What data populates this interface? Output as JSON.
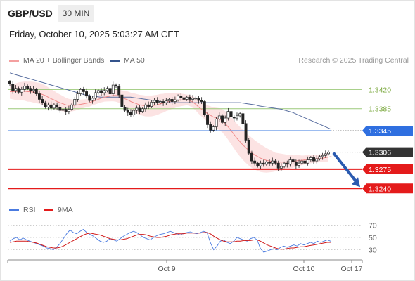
{
  "header": {
    "symbol": "GBP/USD",
    "interval": "30 MIN",
    "datetime": "Friday, October 10, 2025 5:03:27 AM CET"
  },
  "legend": {
    "ma20_label": "MA 20 + Bollinger Bands",
    "ma20_color": "#f4a0a0",
    "ma50_label": "MA 50",
    "ma50_color": "#34538c",
    "research": "Research © 2025 Trading Central"
  },
  "chart_data": {
    "type": "line",
    "price_levels": [
      {
        "value": 1.342,
        "label": "1.3420",
        "kind": "resistance",
        "color": "#9bc97a"
      },
      {
        "value": 1.3385,
        "label": "1.3385",
        "kind": "resistance",
        "color": "#9bc97a"
      },
      {
        "value": 1.3345,
        "label": "1.3345",
        "kind": "pivot",
        "color": "#3a78e0"
      },
      {
        "value": 1.3306,
        "label": "1.3306",
        "kind": "last",
        "color": "#333333"
      },
      {
        "value": 1.3275,
        "label": "1.3275",
        "kind": "support",
        "color": "#e41b1b"
      },
      {
        "value": 1.324,
        "label": "1.3240",
        "kind": "support",
        "color": "#e41b1b"
      }
    ],
    "price_close": [
      1.343,
      1.3418,
      1.3422,
      1.3415,
      1.342,
      1.3426,
      1.3422,
      1.3418,
      1.342,
      1.3412,
      1.3402,
      1.3396,
      1.3388,
      1.3392,
      1.3386,
      1.3392,
      1.3388,
      1.3382,
      1.3384,
      1.338,
      1.3384,
      1.3392,
      1.3402,
      1.3412,
      1.342,
      1.3416,
      1.3408,
      1.34,
      1.3404,
      1.3414,
      1.3418,
      1.3414,
      1.3418,
      1.3422,
      1.3412,
      1.3428,
      1.3426,
      1.341,
      1.3388,
      1.3382,
      1.3378,
      1.3374,
      1.3382,
      1.3386,
      1.338,
      1.3385,
      1.3392,
      1.3389,
      1.3397,
      1.34,
      1.3396,
      1.3398,
      1.3396,
      1.3399,
      1.3402,
      1.3398,
      1.3401,
      1.3408,
      1.3405,
      1.3402,
      1.3406,
      1.3402,
      1.3404,
      1.3404,
      1.34,
      1.3398,
      1.3374,
      1.3356,
      1.3346,
      1.3352,
      1.3366,
      1.3372,
      1.336,
      1.3368,
      1.338,
      1.337,
      1.3368,
      1.3372,
      1.3376,
      1.3358,
      1.3328,
      1.3304,
      1.329,
      1.3286,
      1.3281,
      1.3286,
      1.3284,
      1.3288,
      1.3286,
      1.329,
      1.3286,
      1.3277,
      1.328,
      1.3286,
      1.3284,
      1.3292,
      1.3288,
      1.3282,
      1.3286,
      1.329,
      1.3286,
      1.3292,
      1.3296,
      1.329,
      1.3294,
      1.3298,
      1.33,
      1.3303,
      1.3306
    ],
    "ma20": [
      1.3416,
      1.3416,
      1.3416,
      1.3417,
      1.3417,
      1.3417,
      1.3416,
      1.3416,
      1.3415,
      1.3414,
      1.3413,
      1.3411,
      1.3409,
      1.3406,
      1.3403,
      1.3401,
      1.3398,
      1.3396,
      1.3394,
      1.3392,
      1.3391,
      1.3391,
      1.3391,
      1.3392,
      1.3393,
      1.3394,
      1.3395,
      1.3396,
      1.3398,
      1.34,
      1.3402,
      1.3404,
      1.3406,
      1.3407,
      1.3408,
      1.3409,
      1.3409,
      1.3408,
      1.3405,
      1.3403,
      1.3401,
      1.3398,
      1.3396,
      1.3394,
      1.3392,
      1.3391,
      1.339,
      1.339,
      1.339,
      1.3391,
      1.3392,
      1.3394,
      1.3395,
      1.3397,
      1.3398,
      1.3399,
      1.34,
      1.3401,
      1.3401,
      1.3401,
      1.3401,
      1.34,
      1.3397,
      1.3393,
      1.3388,
      1.3384,
      1.338,
      1.3376,
      1.3373,
      1.337,
      1.3368,
      1.3366,
      1.3363,
      1.3358,
      1.3352,
      1.3345,
      1.3338,
      1.3331,
      1.3325,
      1.3319,
      1.3314,
      1.3309,
      1.3305,
      1.3301,
      1.3298,
      1.3295,
      1.3293,
      1.3291,
      1.329,
      1.3289,
      1.3288,
      1.3288,
      1.3288,
      1.3288,
      1.3288,
      1.3289,
      1.3289,
      1.329,
      1.3291,
      1.3291,
      1.3292,
      1.3293,
      1.3293,
      1.3294,
      1.3294,
      1.3295,
      1.3295,
      1.3296,
      1.3297,
      1.3298
    ],
    "ma50": [
      1.345,
      1.3448,
      1.3446,
      1.3444,
      1.3442,
      1.344,
      1.3438,
      1.3436,
      1.3434,
      1.3432,
      1.343,
      1.3428,
      1.3426,
      1.3424,
      1.3422,
      1.342,
      1.3418,
      1.3416,
      1.3414,
      1.3412,
      1.341,
      1.3409,
      1.3408,
      1.3407,
      1.3406,
      1.3406,
      1.3406,
      1.3406,
      1.3406,
      1.3406,
      1.3406,
      1.3406,
      1.3406,
      1.3405,
      1.3404,
      1.3403,
      1.3402,
      1.3401,
      1.34,
      1.3399,
      1.3398,
      1.3397,
      1.3396,
      1.3396,
      1.3396,
      1.3396,
      1.3396,
      1.3396,
      1.3396,
      1.3396,
      1.3396,
      1.3396,
      1.3396,
      1.3396,
      1.3396,
      1.3396,
      1.3396,
      1.3396,
      1.3396,
      1.3396,
      1.3396,
      1.3396,
      1.3395,
      1.3394,
      1.3393,
      1.3392,
      1.339,
      1.3389,
      1.3388,
      1.3387,
      1.3386,
      1.3385,
      1.3384,
      1.3382,
      1.338,
      1.3378,
      1.3375,
      1.3372,
      1.3369,
      1.3366,
      1.3363,
      1.336,
      1.3357,
      1.3354,
      1.3351,
      1.3348
    ],
    "rsi": [
      44,
      48,
      50,
      46,
      49,
      46,
      44,
      42,
      40,
      38,
      36,
      33,
      32,
      30,
      34,
      40,
      48,
      56,
      62,
      58,
      56,
      60,
      63,
      58,
      55,
      52,
      48,
      44,
      42,
      44,
      48,
      46,
      44,
      48,
      52,
      55,
      58,
      60,
      58,
      54,
      50,
      48,
      46,
      50,
      53,
      55,
      56,
      58,
      60,
      58,
      56,
      54,
      57,
      58,
      59,
      57,
      56,
      58,
      60,
      58,
      42,
      30,
      36,
      44,
      46,
      42,
      40,
      44,
      50,
      48,
      46,
      44,
      48,
      50,
      46,
      32,
      26,
      28,
      30,
      32,
      30,
      34,
      36,
      34,
      36,
      38,
      36,
      40,
      38,
      40,
      42,
      40,
      44,
      42,
      44,
      46,
      44
    ],
    "rsi_ma9": [
      42,
      43,
      44,
      44,
      44,
      44,
      43,
      42,
      41,
      39,
      37,
      35,
      34,
      33,
      33,
      34,
      36,
      39,
      42,
      45,
      48,
      51,
      54,
      56,
      57,
      56,
      55,
      54,
      52,
      50,
      48,
      47,
      46,
      46,
      47,
      48,
      50,
      52,
      54,
      55,
      55,
      54,
      52,
      51,
      50,
      50,
      51,
      52,
      54,
      55,
      56,
      56,
      56,
      57,
      57,
      57,
      57,
      57,
      58,
      58,
      56,
      52,
      49,
      46,
      44,
      43,
      43,
      43,
      44,
      44,
      45,
      45,
      45,
      46,
      46,
      44,
      41,
      38,
      36,
      34,
      32,
      31,
      31,
      32,
      33,
      33,
      34,
      35,
      35,
      36,
      37,
      38,
      39,
      40,
      41,
      42,
      42
    ],
    "rsi_levels": [
      70,
      50,
      30
    ],
    "rsi_legend": {
      "rsi": "RSI",
      "rsi_color": "#4a7be0",
      "ma": "9MA",
      "ma_color": "#e41b1b"
    },
    "x_ticks": [
      "Oct 9",
      "Oct 10",
      "Oct 17"
    ],
    "ylim": [
      1.3225,
      1.346
    ]
  }
}
